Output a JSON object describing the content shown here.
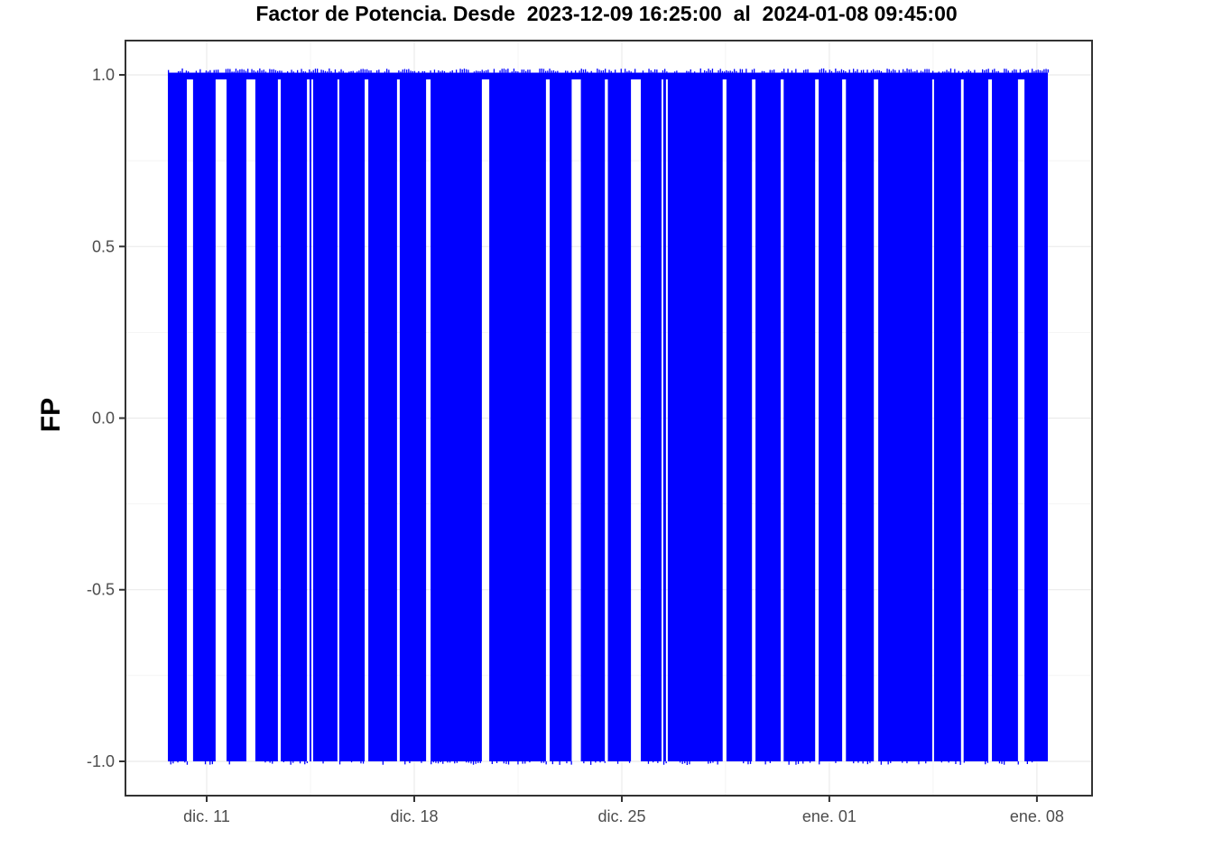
{
  "chart_data": {
    "type": "line",
    "title": "Factor de Potencia. Desde  2023-12-09 16:25:00  al  2024-01-08 09:45:00",
    "ylabel": "FP",
    "xlabel": "",
    "legend": "none",
    "grid": "on",
    "x_axis_unit": "days since 2023-12-08 00:00",
    "x_domain_days": [
      0.26,
      32.86
    ],
    "x_ticks": [
      {
        "label": "dic. 11",
        "day": 3
      },
      {
        "label": "dic. 18",
        "day": 10
      },
      {
        "label": "dic. 25",
        "day": 17
      },
      {
        "label": "ene. 01",
        "day": 24
      },
      {
        "label": "ene. 08",
        "day": 31
      }
    ],
    "x_minor_ticks_days": [
      6.5,
      13.5,
      20.5,
      27.5
    ],
    "y_ticks": [
      {
        "label": "1.0",
        "value": 1.0
      },
      {
        "label": "0.5",
        "value": 0.5
      },
      {
        "label": "0.0",
        "value": 0.0
      },
      {
        "label": "-0.5",
        "value": -0.5
      },
      {
        "label": "-1.0",
        "value": -1.0
      }
    ],
    "y_minor_ticks": [
      0.75,
      0.25,
      -0.25,
      -0.75
    ],
    "ylim": [
      -1.1,
      1.1
    ],
    "data_start": "2023-12-09 16:25:00",
    "data_end": "2024-01-08 09:45:00",
    "data_start_day": 1.69,
    "data_end_day": 31.37,
    "baseline_value": 1.0,
    "oscillation_value_range": [
      -1.0,
      1.0
    ],
    "oscillation_segments_days": [
      [
        1.69,
        2.33
      ],
      [
        2.54,
        3.3
      ],
      [
        3.67,
        4.34
      ],
      [
        4.64,
        5.4
      ],
      [
        5.5,
        6.38
      ],
      [
        6.47,
        6.53
      ],
      [
        6.59,
        7.41
      ],
      [
        7.47,
        8.33
      ],
      [
        8.45,
        9.42
      ],
      [
        9.51,
        10.4
      ],
      [
        10.55,
        12.28
      ],
      [
        12.53,
        14.44
      ],
      [
        14.57,
        15.31
      ],
      [
        15.62,
        16.43
      ],
      [
        16.53,
        17.31
      ],
      [
        17.64,
        18.34
      ],
      [
        18.4,
        18.49
      ],
      [
        18.55,
        20.4
      ],
      [
        20.53,
        21.39
      ],
      [
        21.51,
        22.36
      ],
      [
        22.46,
        23.52
      ],
      [
        23.64,
        24.43
      ],
      [
        24.56,
        25.5
      ],
      [
        25.65,
        27.47
      ],
      [
        27.53,
        28.44
      ],
      [
        28.53,
        29.36
      ],
      [
        29.48,
        30.36
      ],
      [
        30.58,
        31.37
      ]
    ],
    "colors": {
      "series": "#0000ff",
      "grid_major": "#ebebeb",
      "grid_minor": "#f2f2f2",
      "panel_border": "#333333",
      "tick_mark": "#333333",
      "axis_text": "#4d4d4d",
      "title_text": "#000000",
      "background": "#ffffff"
    }
  }
}
